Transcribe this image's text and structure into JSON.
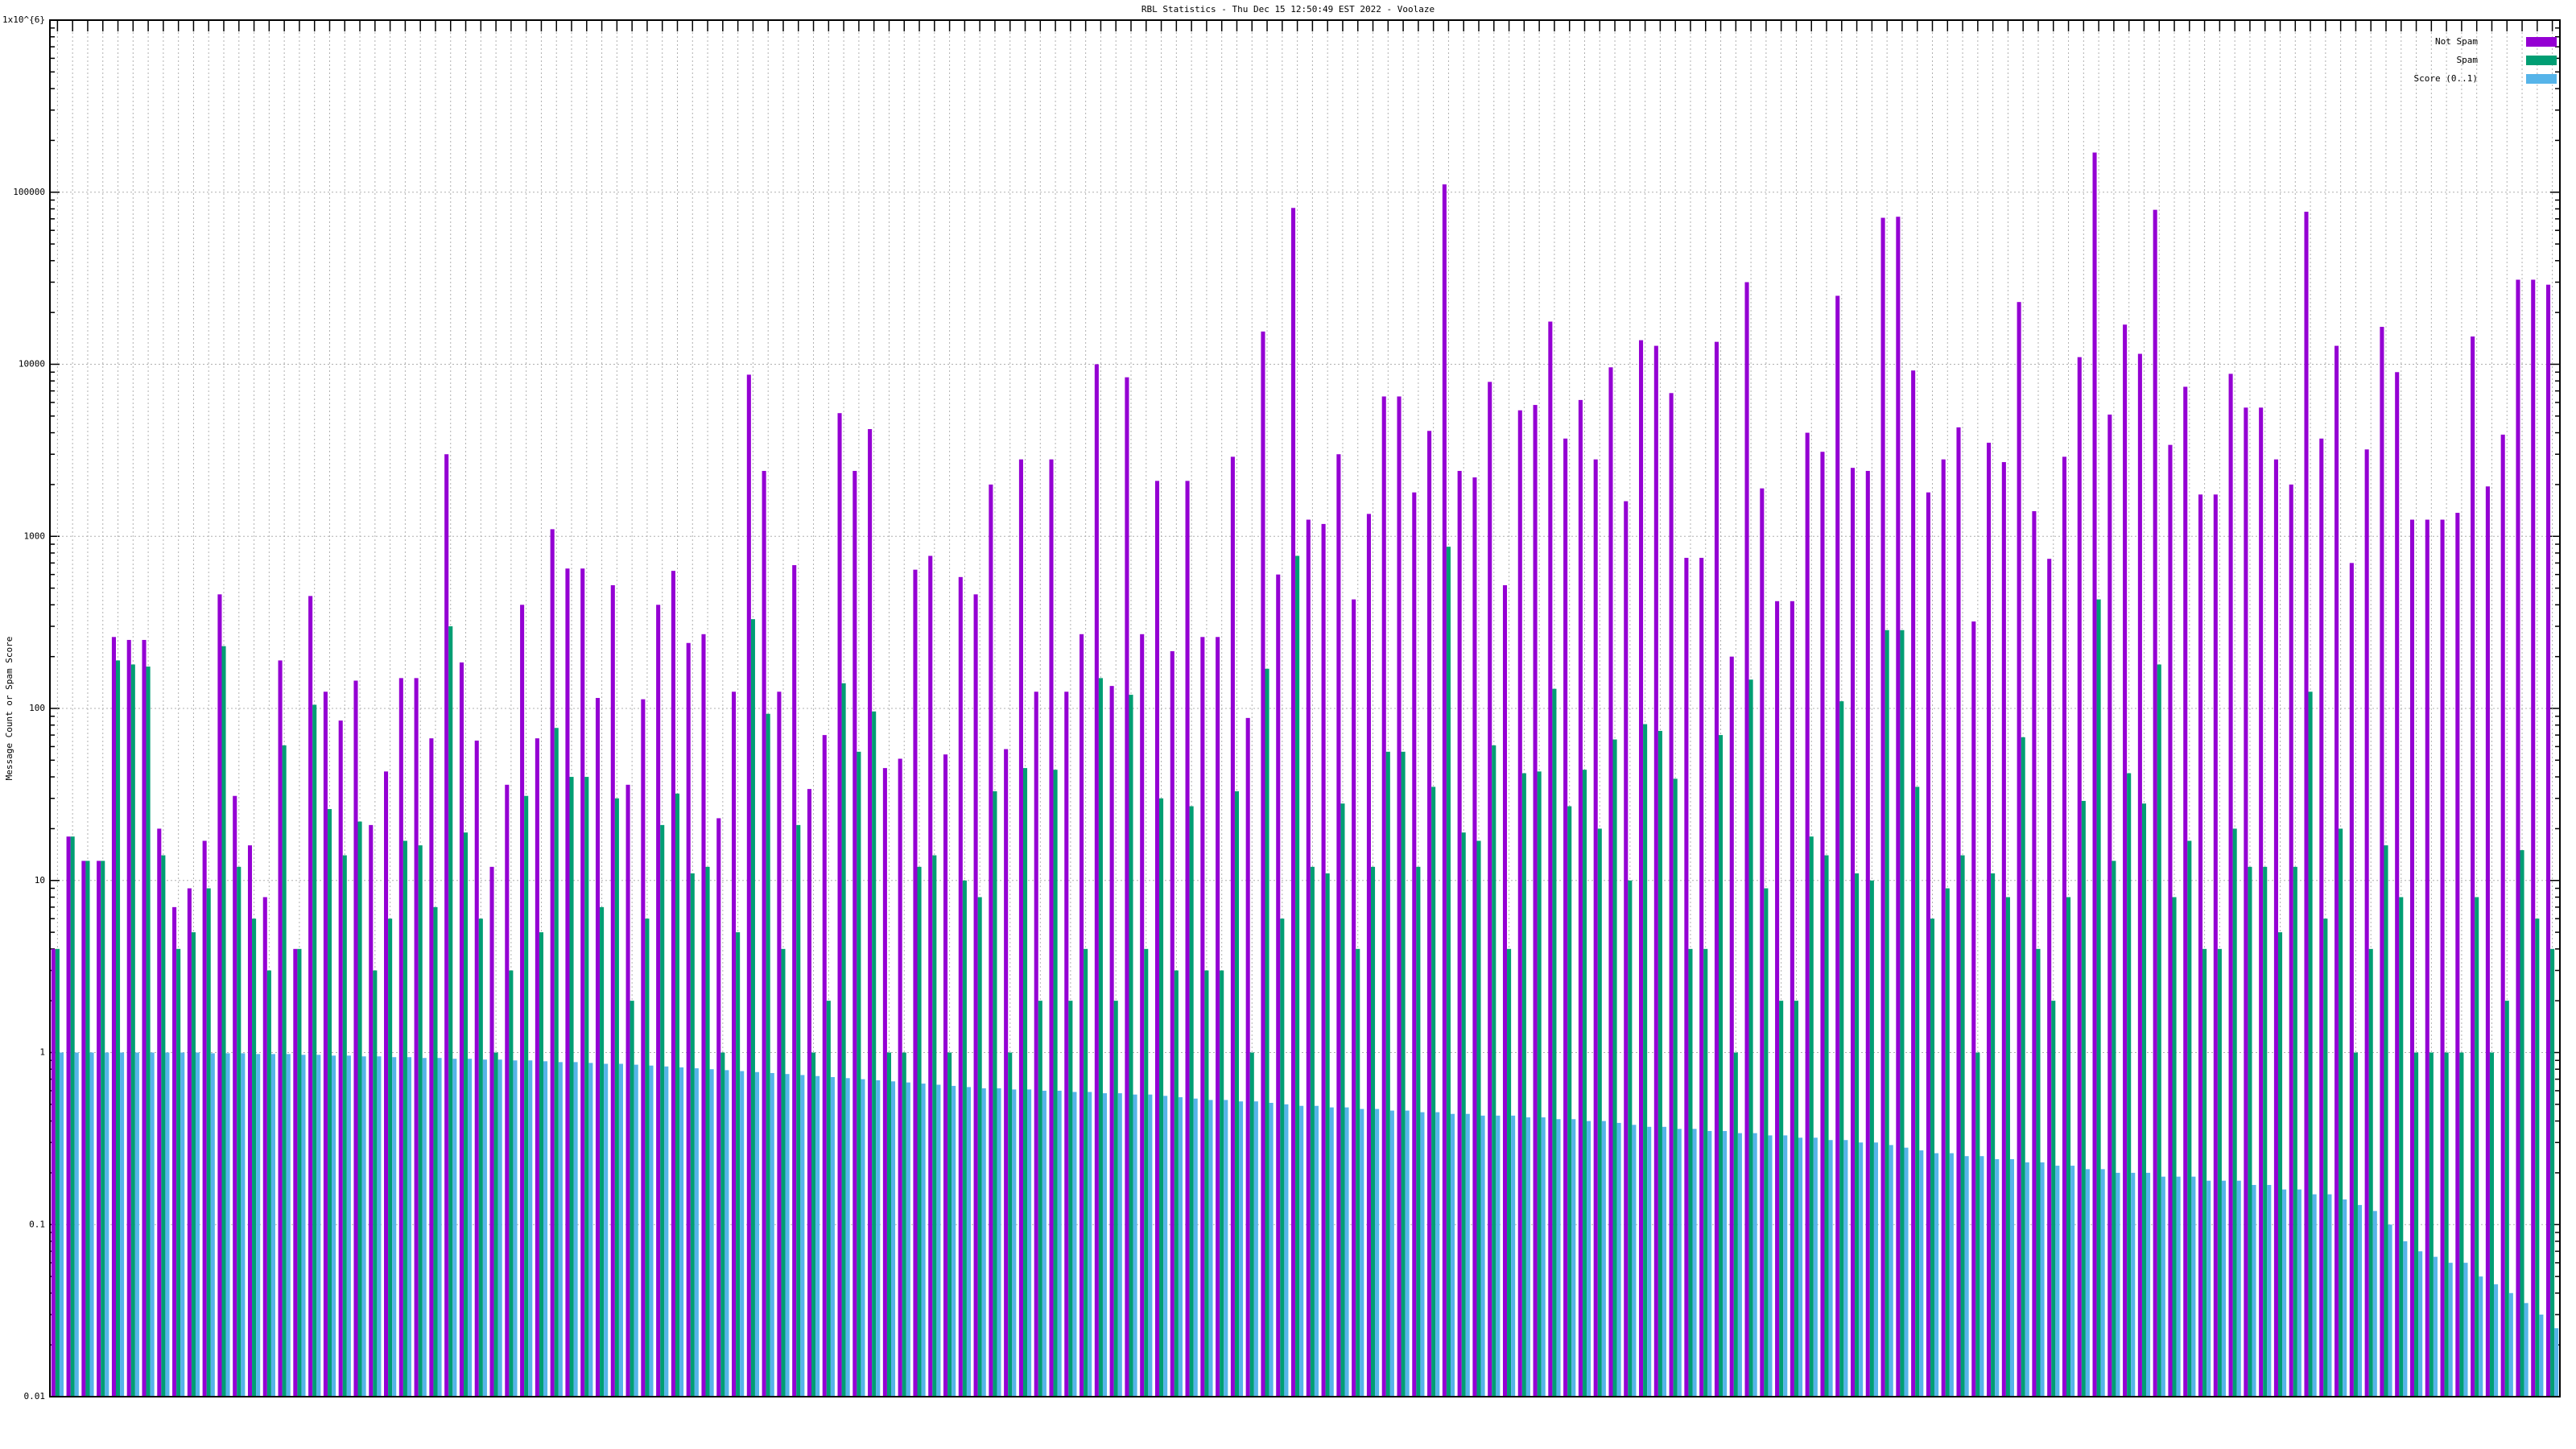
{
  "chart_data": {
    "type": "bar",
    "title": "RBL Statistics - Thu Dec 15 12:50:49 EST 2022 - Voolaze",
    "y_label": "Message Count or Spam Score",
    "log_scale": true,
    "grid": true,
    "legend_position": "top-right",
    "ylim": [
      0.01,
      1000000
    ],
    "yticks": [
      0.01,
      0.1,
      1,
      10,
      100,
      1000,
      10000,
      100000,
      {
        "value": 1000000,
        "label": "1x10^{6}"
      }
    ],
    "categories": [
      null,
      null,
      null,
      null,
      null,
      null,
      null,
      null,
      null,
      null,
      null,
      null,
      null,
      null,
      null,
      null,
      null,
      null,
      null,
      null,
      null,
      null,
      null,
      null,
      null,
      null,
      null,
      null,
      null,
      null,
      null,
      null,
      null,
      null,
      null,
      null,
      null,
      null,
      null,
      null,
      null,
      null,
      null,
      null,
      null,
      null,
      null,
      null,
      null,
      null,
      null,
      null,
      null,
      null,
      null,
      null,
      null,
      null,
      null,
      null,
      null,
      null,
      null,
      null,
      null,
      null,
      null,
      null,
      null,
      null,
      null,
      null,
      null,
      null,
      null,
      null,
      null,
      null,
      null,
      null,
      null,
      null,
      null,
      null,
      null,
      null,
      null,
      null,
      null,
      null,
      null,
      null,
      null,
      null,
      null,
      null,
      null,
      null,
      null,
      null,
      null,
      null,
      null,
      null,
      null,
      null,
      null,
      null,
      null,
      null,
      null,
      null,
      null,
      null,
      null,
      null,
      null,
      null,
      null,
      null,
      null,
      null,
      null,
      null,
      null,
      null,
      null,
      null,
      null,
      null,
      null,
      null,
      null,
      null,
      null,
      null,
      null,
      null,
      null,
      null,
      null,
      null,
      null,
      null,
      null,
      null,
      null,
      null,
      null,
      null,
      null,
      null,
      null,
      null,
      null,
      null,
      null,
      null,
      null,
      null,
      null,
      null,
      null,
      null,
      null,
      null
    ],
    "series": [
      {
        "name": "Not Spam",
        "color": "#9400d3",
        "values": [
          4,
          18,
          13,
          13,
          260,
          250,
          250,
          20,
          7,
          9,
          17,
          460,
          31,
          16,
          8,
          190,
          4,
          450,
          125,
          85,
          145,
          21,
          43,
          150,
          150,
          67,
          3000,
          185,
          65,
          12,
          36,
          400,
          67,
          1100,
          650,
          650,
          115,
          520,
          36,
          113,
          400,
          630,
          240,
          270,
          23,
          125,
          8700,
          2400,
          125,
          680,
          34,
          70,
          5200,
          2400,
          4200,
          45,
          51,
          640,
          770,
          54,
          580,
          460,
          2000,
          58,
          2800,
          125,
          2800,
          125,
          270,
          10000,
          135,
          8400,
          270,
          2100,
          215,
          2100,
          260,
          260,
          2900,
          88,
          15500,
          600,
          81000,
          1250,
          1180,
          3000,
          430,
          1350,
          6500,
          6500,
          1800,
          4100,
          111000,
          2400,
          2200,
          7900,
          520,
          5400,
          5800,
          17700,
          3700,
          6200,
          2800,
          9600,
          1600,
          13800,
          12800,
          6800,
          750,
          750,
          13500,
          200,
          30000,
          1900,
          420,
          420,
          4000,
          3100,
          25000,
          2500,
          2400,
          71000,
          72000,
          9200,
          1800,
          2800,
          4300,
          320,
          3500,
          2700,
          23000,
          1400,
          740,
          2900,
          11000,
          170000,
          5100,
          17000,
          11500,
          79000,
          3400,
          7400,
          1750,
          1750,
          8800,
          5600,
          5600,
          2800,
          2000,
          77000,
          3700,
          12800,
          700,
          3200,
          16500,
          9000,
          1250,
          1250,
          1250,
          1370,
          14500,
          1950,
          3900,
          31000,
          31000,
          29000
        ]
      },
      {
        "name": "Spam",
        "color": "#009e73",
        "values": [
          4,
          18,
          13,
          13,
          190,
          180,
          175,
          14,
          4,
          5,
          9,
          230,
          12,
          6,
          3,
          61,
          4,
          105,
          26,
          14,
          22,
          3,
          6,
          17,
          16,
          7,
          300,
          19,
          6,
          1,
          3,
          31,
          5,
          77,
          40,
          40,
          7,
          30,
          2,
          6,
          21,
          32,
          11,
          12,
          1,
          5,
          330,
          93,
          4,
          21,
          1,
          2,
          140,
          56,
          96,
          1,
          1,
          12,
          14,
          1,
          10,
          8,
          33,
          1,
          45,
          2,
          44,
          2,
          4,
          150,
          2,
          120,
          4,
          30,
          3,
          27,
          3,
          3,
          33,
          1,
          170,
          6,
          770,
          12,
          11,
          28,
          4,
          12,
          56,
          56,
          12,
          35,
          870,
          19,
          17,
          61,
          4,
          42,
          43,
          130,
          27,
          44,
          20,
          66,
          10,
          81,
          74,
          39,
          4,
          4,
          70,
          1,
          147,
          9,
          2,
          2,
          18,
          14,
          110,
          11,
          10,
          285,
          285,
          35,
          6,
          9,
          14,
          1,
          11,
          8,
          68,
          4,
          2,
          8,
          29,
          430,
          13,
          42,
          28,
          180,
          8,
          17,
          4,
          4,
          20,
          12,
          12,
          5,
          12,
          125,
          6,
          20,
          1,
          4,
          16,
          8,
          1,
          1,
          1,
          1,
          8,
          1,
          2,
          15,
          6,
          4
        ]
      },
      {
        "name": "Score (0..1)",
        "color": "#56b4e9",
        "values": [
          1,
          1,
          1,
          1,
          1,
          1,
          1,
          1,
          1,
          1,
          0.99,
          0.99,
          0.99,
          0.98,
          0.98,
          0.98,
          0.97,
          0.97,
          0.96,
          0.96,
          0.95,
          0.95,
          0.94,
          0.94,
          0.93,
          0.93,
          0.92,
          0.92,
          0.91,
          0.91,
          0.9,
          0.9,
          0.89,
          0.88,
          0.88,
          0.87,
          0.86,
          0.86,
          0.85,
          0.84,
          0.83,
          0.82,
          0.81,
          0.8,
          0.79,
          0.78,
          0.77,
          0.76,
          0.75,
          0.74,
          0.73,
          0.72,
          0.71,
          0.7,
          0.69,
          0.68,
          0.67,
          0.66,
          0.65,
          0.64,
          0.63,
          0.62,
          0.62,
          0.61,
          0.61,
          0.6,
          0.6,
          0.59,
          0.59,
          0.58,
          0.58,
          0.57,
          0.57,
          0.56,
          0.55,
          0.54,
          0.53,
          0.53,
          0.52,
          0.52,
          0.51,
          0.5,
          0.49,
          0.49,
          0.48,
          0.48,
          0.47,
          0.47,
          0.46,
          0.46,
          0.45,
          0.45,
          0.44,
          0.44,
          0.43,
          0.43,
          0.43,
          0.42,
          0.42,
          0.41,
          0.41,
          0.4,
          0.4,
          0.39,
          0.38,
          0.37,
          0.37,
          0.36,
          0.36,
          0.35,
          0.35,
          0.34,
          0.34,
          0.33,
          0.33,
          0.32,
          0.32,
          0.31,
          0.31,
          0.3,
          0.3,
          0.29,
          0.28,
          0.27,
          0.26,
          0.26,
          0.25,
          0.25,
          0.24,
          0.24,
          0.23,
          0.23,
          0.22,
          0.22,
          0.21,
          0.21,
          0.2,
          0.2,
          0.2,
          0.19,
          0.19,
          0.19,
          0.18,
          0.18,
          0.18,
          0.17,
          0.17,
          0.16,
          0.16,
          0.15,
          0.15,
          0.14,
          0.13,
          0.12,
          0.1,
          0.08,
          0.07,
          0.065,
          0.06,
          0.06,
          0.05,
          0.045,
          0.04,
          0.035,
          0.03,
          0.025
        ]
      }
    ]
  }
}
